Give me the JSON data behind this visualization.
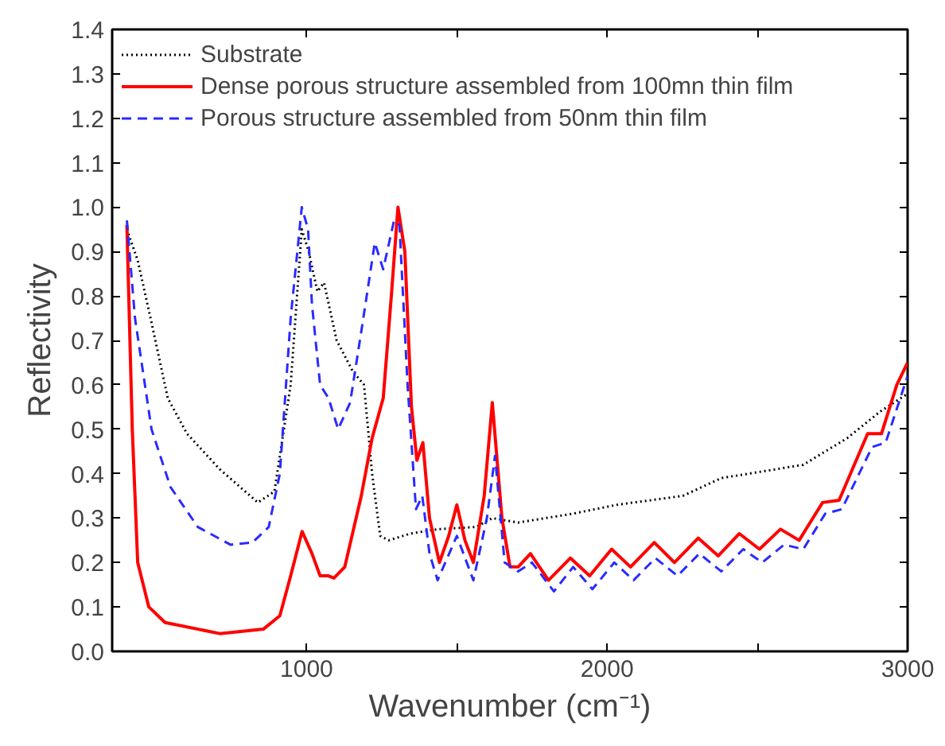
{
  "chart_data": {
    "type": "line",
    "xlabel": "Wavenumber (cm⁻¹)",
    "ylabel": "Reflectivity",
    "xlim": [
      353,
      3000
    ],
    "ylim": [
      0,
      1.4
    ],
    "xticks": [
      1000,
      {
        "value": 1500,
        "label": null
      },
      2000,
      {
        "value": 2500,
        "label": null
      },
      3000
    ],
    "yticks": [
      {
        "value": 0,
        "label": "0.0"
      },
      0.1,
      0.2,
      0.3,
      0.4,
      0.5,
      0.6,
      0.7,
      0.8,
      0.9,
      {
        "value": 1,
        "label": "1.0"
      },
      1.1,
      1.2,
      1.3,
      1.4
    ],
    "grid": false,
    "legend": "top left",
    "marker": "none",
    "series": [
      {
        "name": "Substrate",
        "color": "#000000",
        "line_style": "dotted",
        "x": [
          402,
          438,
          484,
          538,
          602,
          711,
          838,
          893,
          947,
          984,
          1007,
          1036,
          1058,
          1100,
          1154,
          1191,
          1218,
          1245,
          1273,
          1345,
          1436,
          1564,
          1618,
          1704,
          1887,
          2033,
          2252,
          2380,
          2471,
          2653,
          2799,
          2909,
          3000
        ],
        "values": [
          0.95,
          0.88,
          0.74,
          0.57,
          0.49,
          0.41,
          0.335,
          0.36,
          0.6,
          0.95,
          0.9,
          0.81,
          0.83,
          0.7,
          0.63,
          0.6,
          0.4,
          0.26,
          0.25,
          0.265,
          0.275,
          0.28,
          0.3,
          0.29,
          0.31,
          0.33,
          0.35,
          0.39,
          0.4,
          0.42,
          0.48,
          0.54,
          0.58
        ]
      },
      {
        "name": "Dense porous structure assembled from 100mn thin film",
        "color": "#ff0000",
        "line_style": "solid",
        "x": [
          402,
          420,
          438,
          475,
          529,
          711,
          856,
          911,
          947,
          985,
          1018,
          1045,
          1073,
          1091,
          1127,
          1182,
          1218,
          1255,
          1282,
          1304,
          1327,
          1349,
          1367,
          1387,
          1409,
          1442,
          1473,
          1500,
          1527,
          1555,
          1591,
          1618,
          1650,
          1677,
          1704,
          1745,
          1805,
          1878,
          1942,
          2015,
          2078,
          2157,
          2224,
          2303,
          2370,
          2440,
          2507,
          2577,
          2639,
          2717,
          2772,
          2867,
          2913,
          2964,
          3000
        ],
        "values": [
          0.96,
          0.5,
          0.2,
          0.1,
          0.065,
          0.04,
          0.05,
          0.08,
          0.17,
          0.27,
          0.22,
          0.17,
          0.17,
          0.165,
          0.19,
          0.35,
          0.48,
          0.57,
          0.8,
          1.0,
          0.9,
          0.55,
          0.43,
          0.47,
          0.3,
          0.2,
          0.26,
          0.33,
          0.25,
          0.2,
          0.35,
          0.56,
          0.3,
          0.19,
          0.19,
          0.22,
          0.16,
          0.21,
          0.17,
          0.23,
          0.19,
          0.245,
          0.2,
          0.255,
          0.215,
          0.265,
          0.23,
          0.275,
          0.25,
          0.335,
          0.34,
          0.49,
          0.49,
          0.6,
          0.65
        ]
      },
      {
        "name": "Porous structure assembled from 50nm thin film",
        "color": "#2a2aff",
        "line_style": "dashed",
        "x": [
          402,
          429,
          484,
          547,
          638,
          747,
          820,
          874,
          911,
          947,
          984,
          1005,
          1018,
          1045,
          1073,
          1105,
          1145,
          1182,
          1227,
          1255,
          1291,
          1309,
          1336,
          1364,
          1385,
          1409,
          1436,
          1500,
          1555,
          1600,
          1627,
          1659,
          1704,
          1750,
          1823,
          1887,
          1951,
          2024,
          2088,
          2161,
          2234,
          2307,
          2380,
          2453,
          2516,
          2589,
          2653,
          2726,
          2781,
          2882,
          2927,
          3000
        ],
        "values": [
          0.97,
          0.75,
          0.5,
          0.37,
          0.28,
          0.24,
          0.245,
          0.28,
          0.4,
          0.75,
          1.0,
          0.95,
          0.78,
          0.6,
          0.57,
          0.5,
          0.56,
          0.72,
          0.92,
          0.86,
          0.97,
          0.96,
          0.6,
          0.32,
          0.35,
          0.22,
          0.16,
          0.26,
          0.16,
          0.3,
          0.44,
          0.2,
          0.18,
          0.2,
          0.135,
          0.19,
          0.14,
          0.2,
          0.16,
          0.21,
          0.17,
          0.22,
          0.18,
          0.23,
          0.2,
          0.24,
          0.23,
          0.31,
          0.32,
          0.46,
          0.47,
          0.62
        ]
      }
    ]
  }
}
